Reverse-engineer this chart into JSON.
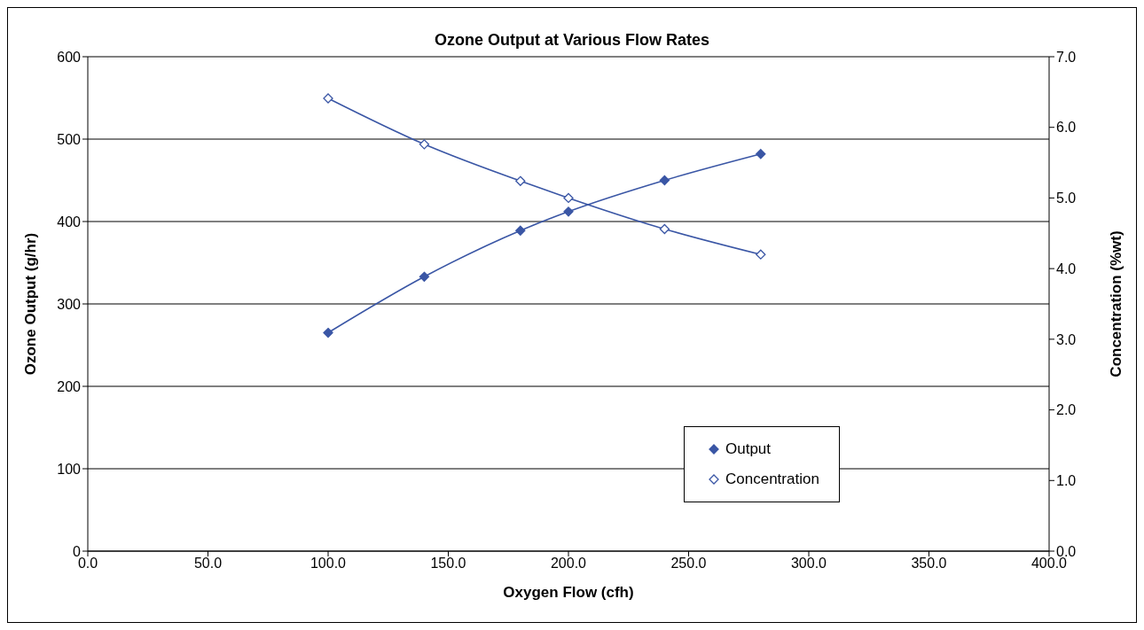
{
  "chart_data": {
    "type": "line",
    "title": "Ozone Output at Various Flow Rates",
    "xlabel": "Oxygen Flow (cfh)",
    "ylabel": "Ozone Output (g/hr)",
    "y2label": "Concentration (%wt)",
    "x": [
      100,
      140,
      180,
      200,
      240,
      280
    ],
    "series": [
      {
        "name": "Output",
        "color": "#3a56a5",
        "values": [
          265,
          333,
          389,
          412,
          450,
          482
        ]
      },
      {
        "name": "Concentration",
        "color": "#3a56a5",
        "axis": "y2",
        "values": [
          6.41,
          5.76,
          5.24,
          5.0,
          4.56,
          4.2
        ]
      }
    ],
    "xlim": [
      0,
      400
    ],
    "xticks": [
      {
        "value": 0,
        "label": "0.0"
      },
      {
        "value": 50,
        "label": "50.0"
      },
      {
        "value": 100,
        "label": "100.0"
      },
      {
        "value": 150,
        "label": "150.0"
      },
      {
        "value": 200,
        "label": "200.0"
      },
      {
        "value": 250,
        "label": "250.0"
      },
      {
        "value": 300,
        "label": "300.0"
      },
      {
        "value": 350,
        "label": "350.0"
      },
      {
        "value": 400,
        "label": "400.0"
      }
    ],
    "ylim": [
      0,
      600
    ],
    "yticks": [
      0,
      100,
      200,
      300,
      400,
      500,
      600
    ],
    "y2lim": [
      0,
      7
    ],
    "y2ticks": [
      {
        "value": 0,
        "label": "0.0"
      },
      {
        "value": 1,
        "label": "1.0"
      },
      {
        "value": 2,
        "label": "2.0"
      },
      {
        "value": 3,
        "label": "3.0"
      },
      {
        "value": 4,
        "label": "4.0"
      },
      {
        "value": 5,
        "label": "5.0"
      },
      {
        "value": 6,
        "label": "6.0"
      },
      {
        "value": 7,
        "label": "7.0"
      }
    ],
    "grid": "y",
    "legend": "bottom right",
    "marker": "diamond",
    "line_style": "solid"
  }
}
